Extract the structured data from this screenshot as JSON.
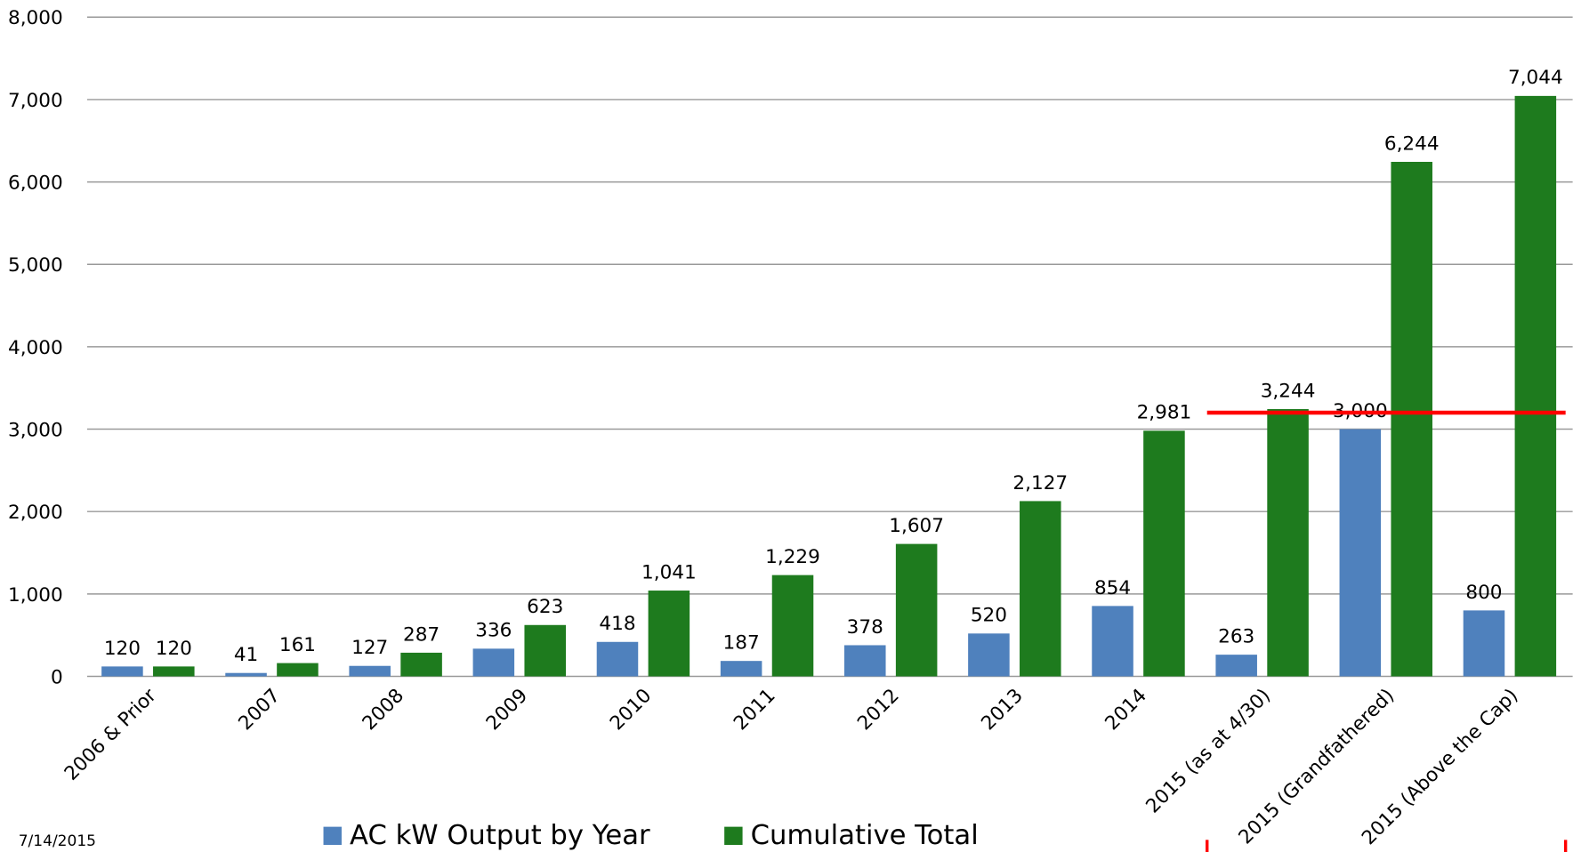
{
  "chart_data": {
    "type": "bar",
    "categories": [
      "2006 & Prior",
      "2007",
      "2008",
      "2009",
      "2010",
      "2011",
      "2012",
      "2013",
      "2014",
      "2015 (as at 4/30)",
      "2015 (Grandfathered)",
      "2015 (Above the Cap)"
    ],
    "series": [
      {
        "name": "AC kW Output by Year",
        "color": "#4f81bd",
        "values": [
          120,
          41,
          127,
          336,
          418,
          187,
          378,
          520,
          854,
          263,
          3000,
          800
        ],
        "value_labels": [
          "120",
          "41",
          "127",
          "336",
          "418",
          "187",
          "378",
          "520",
          "854",
          "263",
          "3,000",
          "800"
        ]
      },
      {
        "name": "Cumulative Total",
        "color": "#1e7b1e",
        "values": [
          120,
          161,
          287,
          623,
          1041,
          1229,
          1607,
          2127,
          2981,
          3244,
          6244,
          7044
        ],
        "value_labels": [
          "120",
          "161",
          "287",
          "623",
          "1,041",
          "1,229",
          "1,607",
          "2,127",
          "2,981",
          "3,244",
          "6,244",
          "7,044"
        ]
      }
    ],
    "ylim": [
      0,
      8000
    ],
    "yticks": [
      0,
      {
        "value": 1000,
        "label": "1,000"
      },
      {
        "value": 2000,
        "label": "2,000"
      },
      {
        "value": 3000,
        "label": "3,000"
      },
      {
        "value": 4000,
        "label": "4,000"
      },
      {
        "value": 5000,
        "label": "5,000"
      },
      {
        "value": 6000,
        "label": "6,000"
      },
      {
        "value": 7000,
        "label": "7,000"
      },
      {
        "value": 8000,
        "label": "8,000"
      }
    ],
    "grid": true,
    "cap_line": {
      "value": 3200,
      "color": "#ff0000"
    },
    "date": "7/14/2015"
  }
}
